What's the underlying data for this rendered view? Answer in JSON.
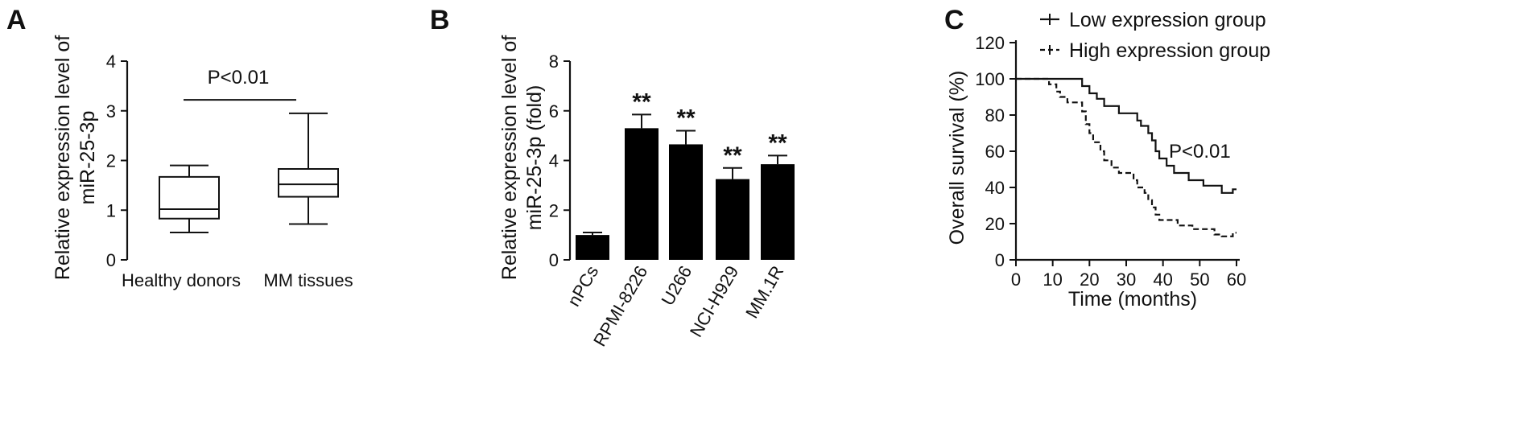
{
  "chart_data": [
    {
      "panel": "A",
      "type": "box",
      "ylabel": [
        "Relative expression level of",
        "miR-25-3p"
      ],
      "ylim": [
        0,
        4
      ],
      "yticks": [
        "0",
        "1",
        "2",
        "3",
        "4"
      ],
      "categories": [
        "Healthy donors",
        "MM tissues"
      ],
      "boxes": [
        {
          "min": 0.55,
          "q1": 0.83,
          "median": 1.02,
          "q3": 1.67,
          "max": 1.9
        },
        {
          "min": 0.72,
          "q1": 1.27,
          "median": 1.52,
          "q3": 1.83,
          "max": 2.95
        }
      ],
      "annotation": "P<0.01",
      "annotation_y": 3.22
    },
    {
      "panel": "B",
      "type": "bar",
      "ylabel": [
        "Relative expression level of",
        "miR-25-3p (fold)"
      ],
      "ylim": [
        0,
        8
      ],
      "yticks": [
        "0",
        "2",
        "4",
        "6",
        "8"
      ],
      "categories": [
        "nPCs",
        "RPMI-8226",
        "U266",
        "NCI-H929",
        "MM.1R"
      ],
      "values": [
        1.0,
        5.3,
        4.65,
        3.25,
        3.85
      ],
      "errors": [
        0.1,
        0.55,
        0.55,
        0.45,
        0.35
      ],
      "significance": [
        "",
        "**",
        "**",
        "**",
        "**"
      ]
    },
    {
      "panel": "C",
      "type": "line",
      "ylabel": "Overall survival (%)",
      "xlabel": "Time (months)",
      "xlim": [
        0,
        60
      ],
      "ylim": [
        0,
        120
      ],
      "xticks": [
        "0",
        "10",
        "20",
        "30",
        "40",
        "50",
        "60"
      ],
      "yticks": [
        "0",
        "20",
        "40",
        "60",
        "80",
        "100",
        "120"
      ],
      "annotation": "P<0.01",
      "annotation_pos": [
        50,
        60
      ],
      "series": [
        {
          "name": "Low expression group",
          "style": "solid",
          "points": [
            [
              0,
              100
            ],
            [
              18,
              100
            ],
            [
              18,
              96
            ],
            [
              20,
              96
            ],
            [
              20,
              92
            ],
            [
              22,
              92
            ],
            [
              22,
              89
            ],
            [
              24,
              89
            ],
            [
              24,
              85
            ],
            [
              28,
              85
            ],
            [
              28,
              81
            ],
            [
              33,
              81
            ],
            [
              33,
              77
            ],
            [
              34,
              77
            ],
            [
              34,
              74
            ],
            [
              36,
              74
            ],
            [
              36,
              70
            ],
            [
              37,
              70
            ],
            [
              37,
              66
            ],
            [
              38,
              66
            ],
            [
              38,
              60
            ],
            [
              39,
              60
            ],
            [
              39,
              56
            ],
            [
              41,
              56
            ],
            [
              41,
              52
            ],
            [
              43,
              52
            ],
            [
              43,
              48
            ],
            [
              47,
              48
            ],
            [
              47,
              44
            ],
            [
              51,
              44
            ],
            [
              51,
              41
            ],
            [
              56,
              41
            ],
            [
              56,
              37
            ],
            [
              59,
              37
            ],
            [
              59,
              39
            ],
            [
              60,
              39
            ]
          ]
        },
        {
          "name": "High expression group",
          "style": "dashed",
          "points": [
            [
              0,
              100
            ],
            [
              9,
              100
            ],
            [
              9,
              97
            ],
            [
              11,
              97
            ],
            [
              11,
              93
            ],
            [
              12,
              93
            ],
            [
              12,
              90
            ],
            [
              14,
              90
            ],
            [
              14,
              87
            ],
            [
              18,
              87
            ],
            [
              18,
              82
            ],
            [
              19,
              82
            ],
            [
              19,
              75
            ],
            [
              20,
              75
            ],
            [
              20,
              70
            ],
            [
              21,
              70
            ],
            [
              21,
              65
            ],
            [
              23,
              65
            ],
            [
              23,
              60
            ],
            [
              24,
              60
            ],
            [
              24,
              55
            ],
            [
              26,
              55
            ],
            [
              26,
              51
            ],
            [
              28,
              51
            ],
            [
              28,
              48
            ],
            [
              32,
              48
            ],
            [
              32,
              44
            ],
            [
              33,
              44
            ],
            [
              33,
              40
            ],
            [
              35,
              40
            ],
            [
              35,
              37
            ],
            [
              36,
              37
            ],
            [
              36,
              33
            ],
            [
              37,
              33
            ],
            [
              37,
              29
            ],
            [
              38,
              29
            ],
            [
              38,
              25
            ],
            [
              39,
              25
            ],
            [
              39,
              22
            ],
            [
              44,
              22
            ],
            [
              44,
              19
            ],
            [
              48,
              19
            ],
            [
              48,
              17
            ],
            [
              54,
              17
            ],
            [
              54,
              14
            ],
            [
              56,
              14
            ],
            [
              56,
              13
            ],
            [
              59,
              13
            ],
            [
              59,
              15
            ],
            [
              60,
              15
            ]
          ]
        }
      ]
    }
  ]
}
